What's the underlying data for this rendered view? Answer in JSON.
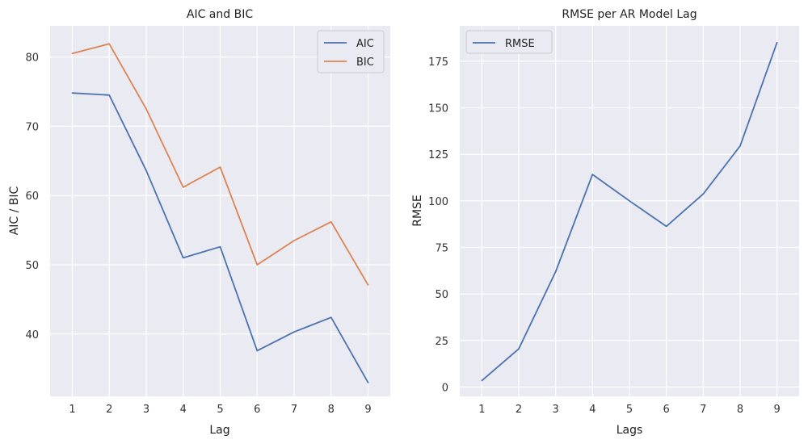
{
  "chart_data": [
    {
      "type": "line",
      "title": "AIC and BIC",
      "xlabel": "Lag",
      "ylabel": "AIC / BIC",
      "x": [
        1,
        2,
        3,
        4,
        5,
        6,
        7,
        8,
        9
      ],
      "xticks": [
        "1",
        "2",
        "3",
        "4",
        "5",
        "6",
        "7",
        "8",
        "9"
      ],
      "yticks": [
        "40",
        "50",
        "60",
        "70",
        "80"
      ],
      "ylim": [
        31,
        84.5
      ],
      "grid": true,
      "legend": "top-right",
      "series": [
        {
          "name": "AIC",
          "color": "#4c72b0",
          "values": [
            74.8,
            74.5,
            63.6,
            51.0,
            52.6,
            37.6,
            40.3,
            42.4,
            33.0
          ]
        },
        {
          "name": "BIC",
          "color": "#dd8452",
          "values": [
            80.5,
            81.9,
            72.5,
            61.2,
            64.1,
            50.0,
            53.5,
            56.2,
            47.1
          ]
        }
      ]
    },
    {
      "type": "line",
      "title": "RMSE per AR Model Lag",
      "xlabel": "Lags",
      "ylabel": "RMSE",
      "x": [
        1,
        2,
        3,
        4,
        5,
        6,
        7,
        8,
        9
      ],
      "xticks": [
        "1",
        "2",
        "3",
        "4",
        "5",
        "6",
        "7",
        "8",
        "9"
      ],
      "yticks": [
        "0",
        "25",
        "50",
        "75",
        "100",
        "125",
        "150",
        "175"
      ],
      "ylim": [
        -5,
        194
      ],
      "grid": true,
      "legend": "top-left",
      "series": [
        {
          "name": "RMSE",
          "color": "#4c72b0",
          "values": [
            3.5,
            20.5,
            62.0,
            114.2,
            100.0,
            86.3,
            103.7,
            129.5,
            185.0
          ]
        }
      ]
    }
  ]
}
